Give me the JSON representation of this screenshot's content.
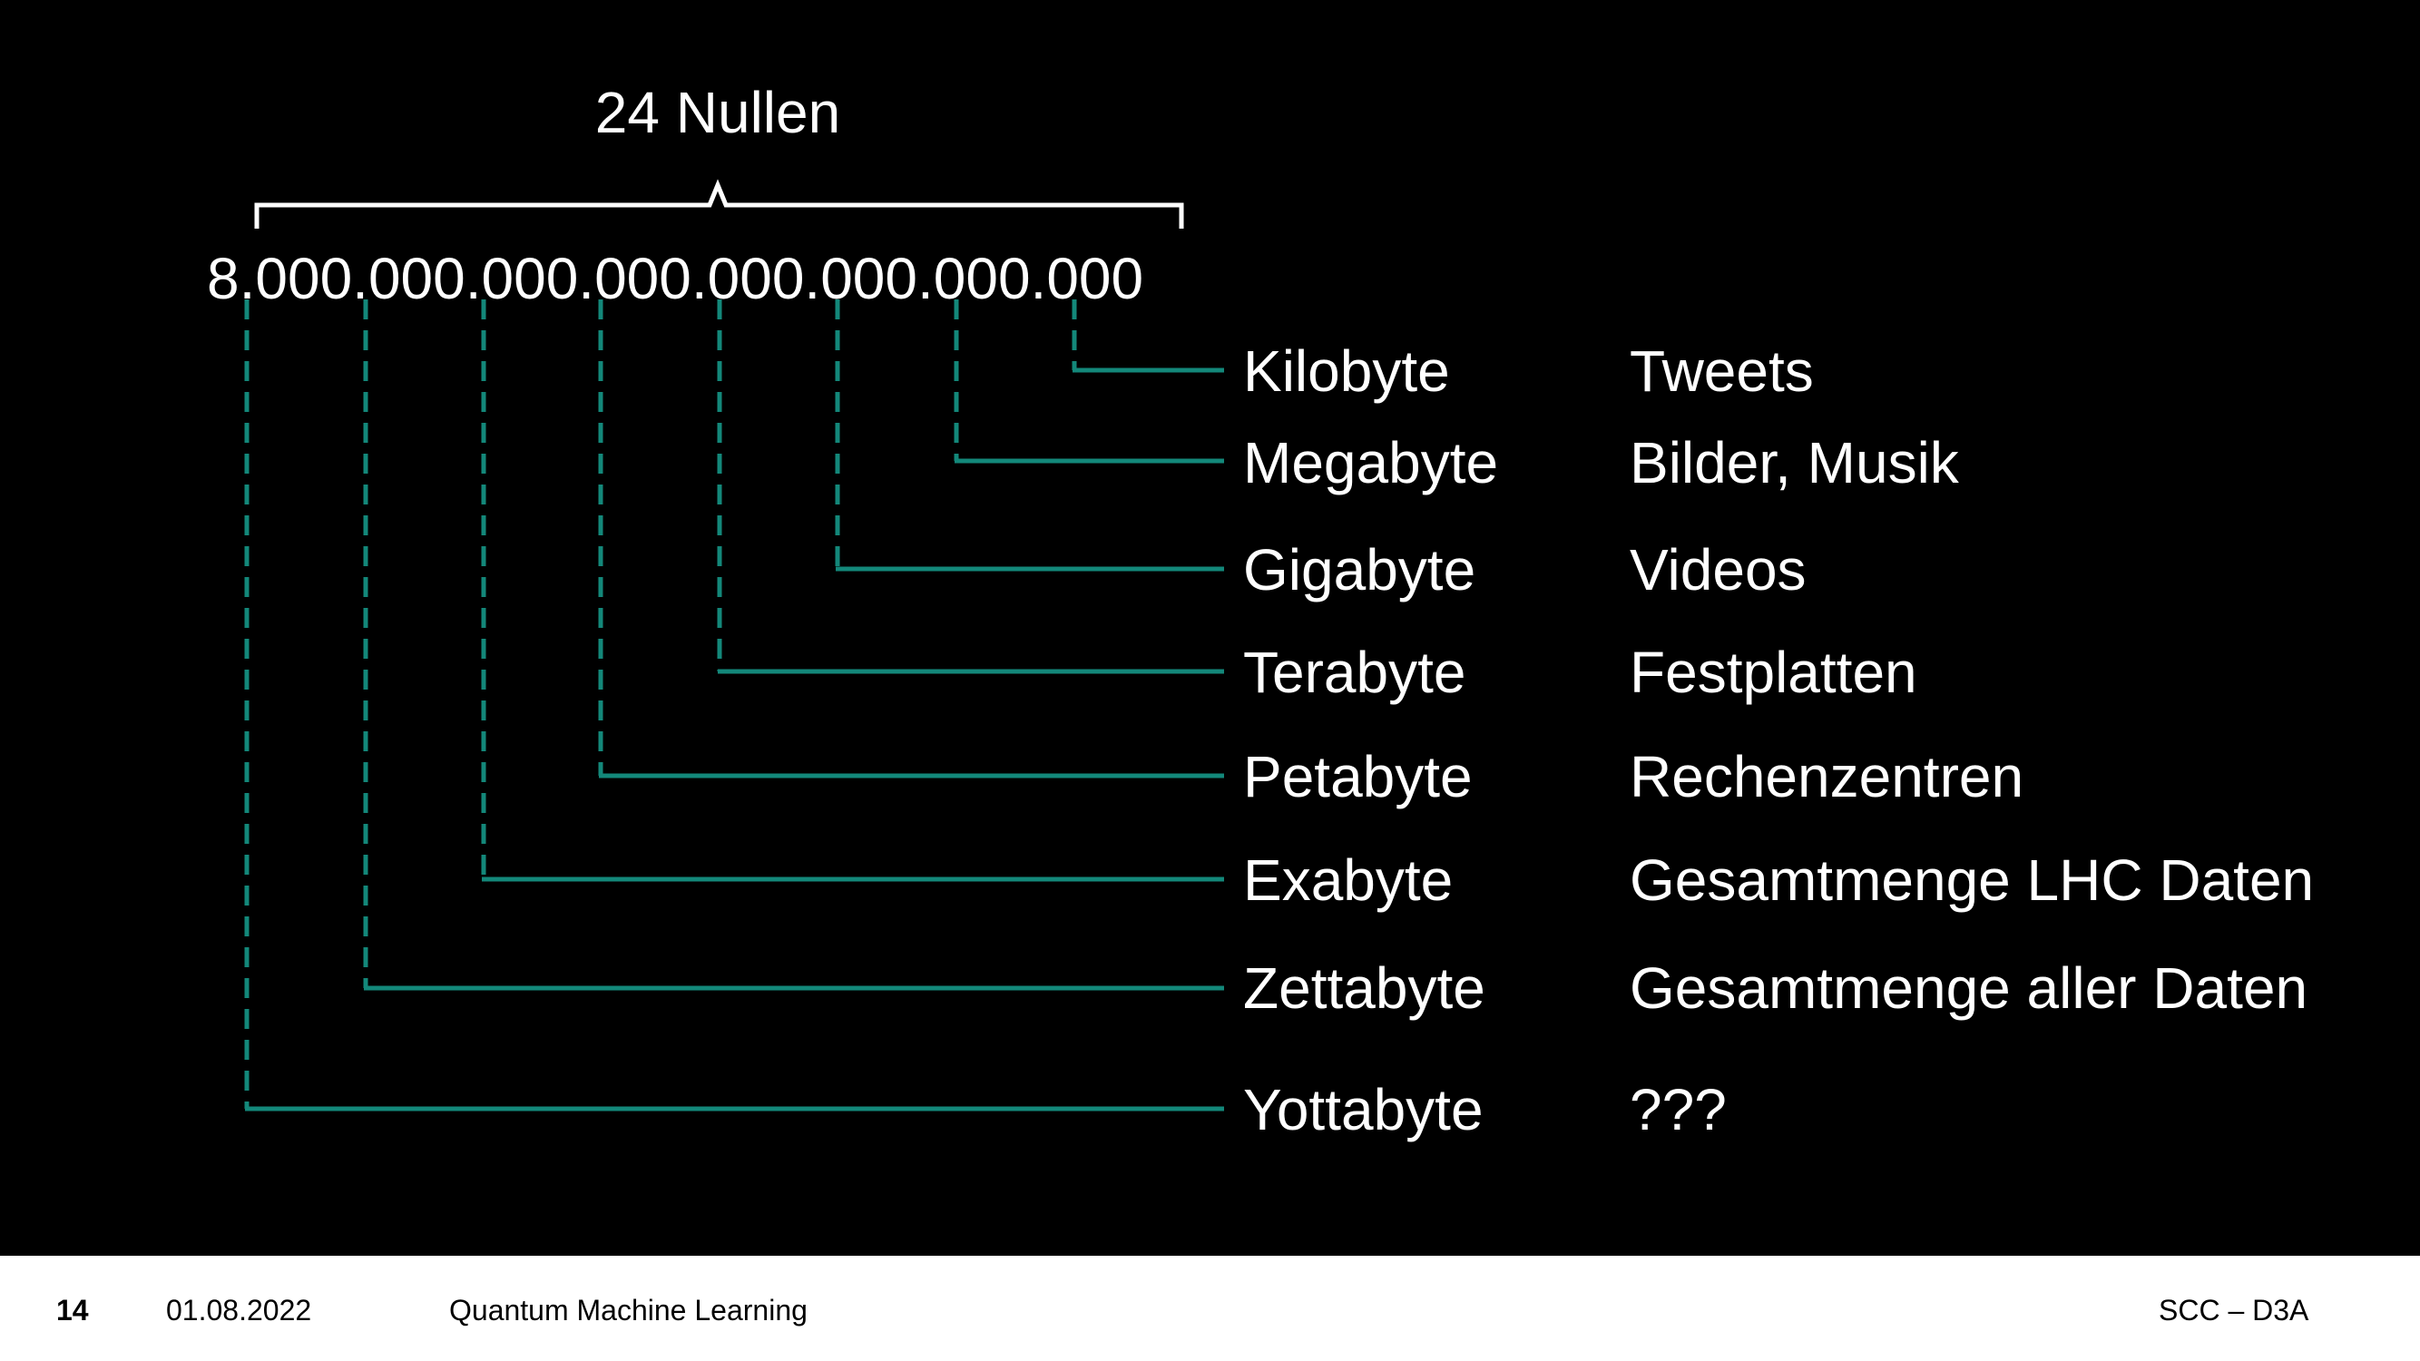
{
  "slide": {
    "brace_label": "24 Nullen",
    "number": "8.000.000.000.000.000.000.000.000",
    "rows": [
      {
        "unit": "Kilobyte",
        "example": "Tweets"
      },
      {
        "unit": "Megabyte",
        "example": "Bilder, Musik"
      },
      {
        "unit": "Gigabyte",
        "example": "Videos"
      },
      {
        "unit": "Terabyte",
        "example": "Festplatten"
      },
      {
        "unit": "Petabyte",
        "example": "Rechenzentren"
      },
      {
        "unit": "Exabyte",
        "example": "Gesamtmenge LHC Daten"
      },
      {
        "unit": "Zettabyte",
        "example": "Gesamtmenge aller Daten"
      },
      {
        "unit": "Yottabyte",
        "example": "???"
      }
    ]
  },
  "footer": {
    "page_number": "14",
    "date": "01.08.2022",
    "title": "Quantum Machine Learning",
    "organization": "SCC – D3A"
  },
  "colors": {
    "background": "#000000",
    "connector": "#13887a",
    "text": "#ffffff",
    "footer_background": "#ffffff",
    "footer_text": "#000000"
  }
}
